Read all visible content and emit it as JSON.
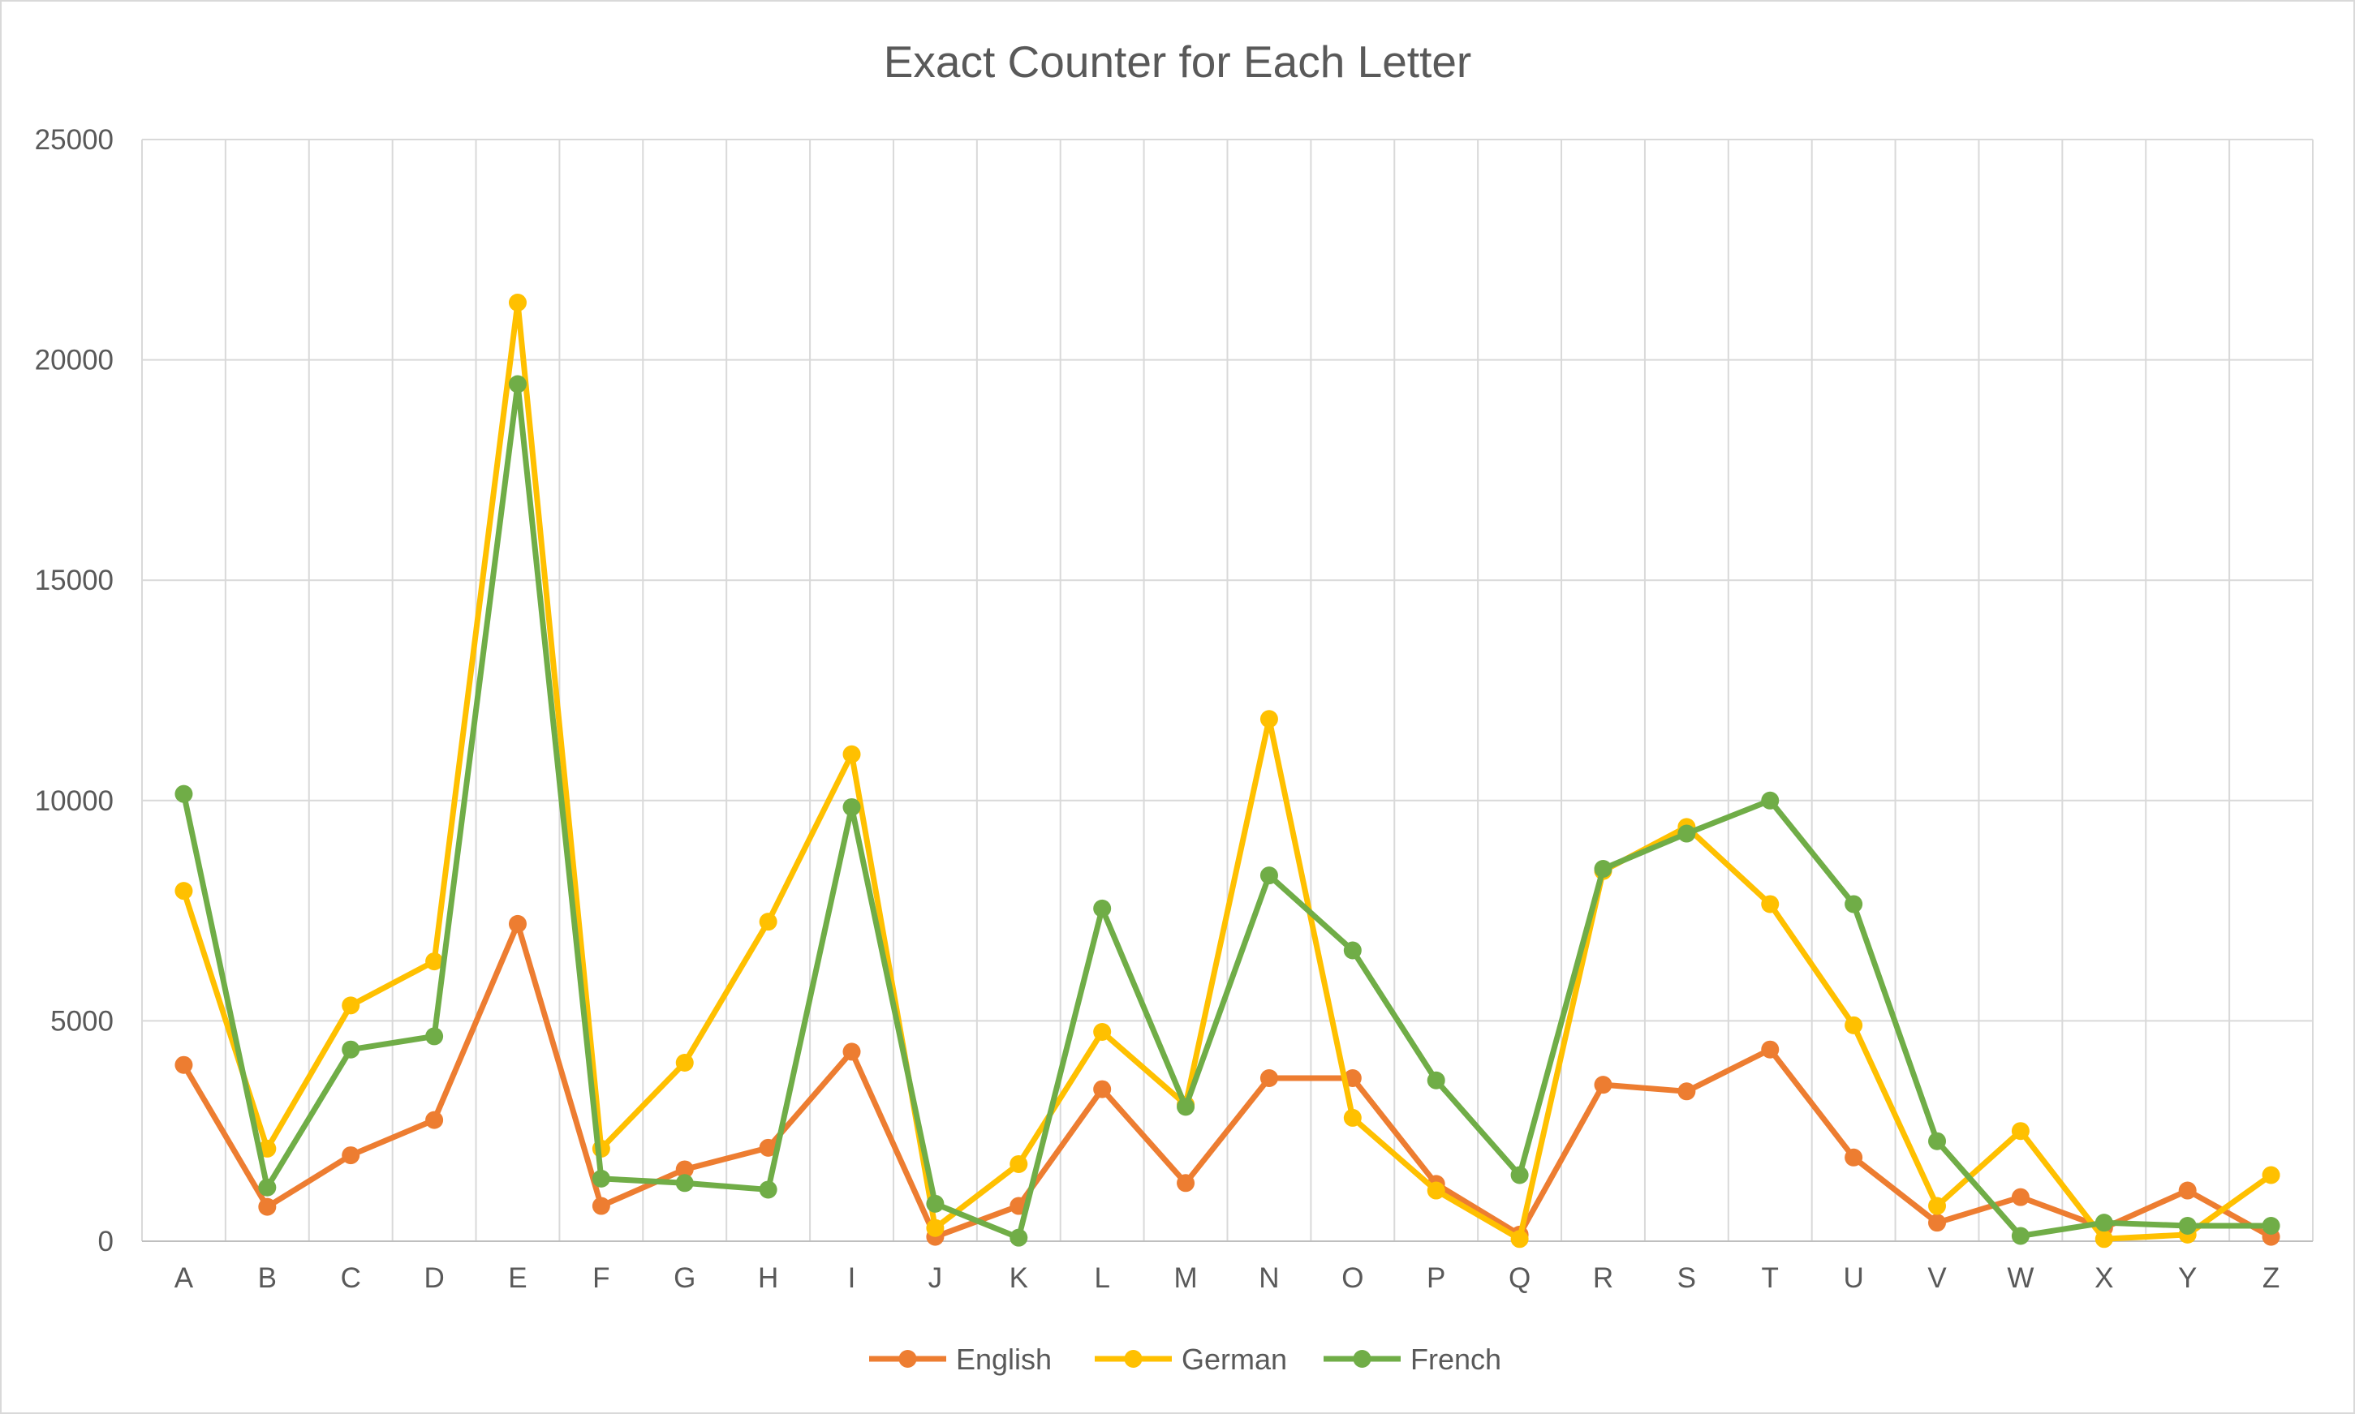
{
  "chart_data": {
    "type": "line",
    "title": "Exact Counter for Each Letter",
    "xlabel": "",
    "ylabel": "",
    "categories": [
      "A",
      "B",
      "C",
      "D",
      "E",
      "F",
      "G",
      "H",
      "I",
      "J",
      "K",
      "L",
      "M",
      "N",
      "O",
      "P",
      "Q",
      "R",
      "S",
      "T",
      "U",
      "V",
      "W",
      "X",
      "Y",
      "Z"
    ],
    "ylim": [
      0,
      25000
    ],
    "yticks": [
      0,
      5000,
      10000,
      15000,
      20000,
      25000
    ],
    "grid": true,
    "legend_position": "bottom",
    "series": [
      {
        "name": "English",
        "color": "#ed7d31",
        "values": [
          4000,
          780,
          1950,
          2750,
          7200,
          800,
          1630,
          2120,
          4300,
          100,
          800,
          3450,
          1320,
          3700,
          3700,
          1300,
          150,
          3550,
          3400,
          4350,
          1900,
          420,
          1000,
          300,
          1150,
          100
        ]
      },
      {
        "name": "German",
        "color": "#ffc000",
        "values": [
          7950,
          2100,
          5350,
          6350,
          21300,
          2100,
          4050,
          7250,
          11050,
          300,
          1750,
          4750,
          3100,
          11850,
          2800,
          1150,
          50,
          8400,
          9400,
          7650,
          4900,
          800,
          2500,
          50,
          150,
          1500
        ]
      },
      {
        "name": "French",
        "color": "#70ad47",
        "values": [
          10150,
          1220,
          4350,
          4650,
          19450,
          1420,
          1320,
          1170,
          9850,
          850,
          80,
          7550,
          3050,
          8300,
          6600,
          3650,
          1500,
          8450,
          9250,
          10000,
          7650,
          2270,
          120,
          420,
          350,
          350
        ]
      }
    ]
  }
}
